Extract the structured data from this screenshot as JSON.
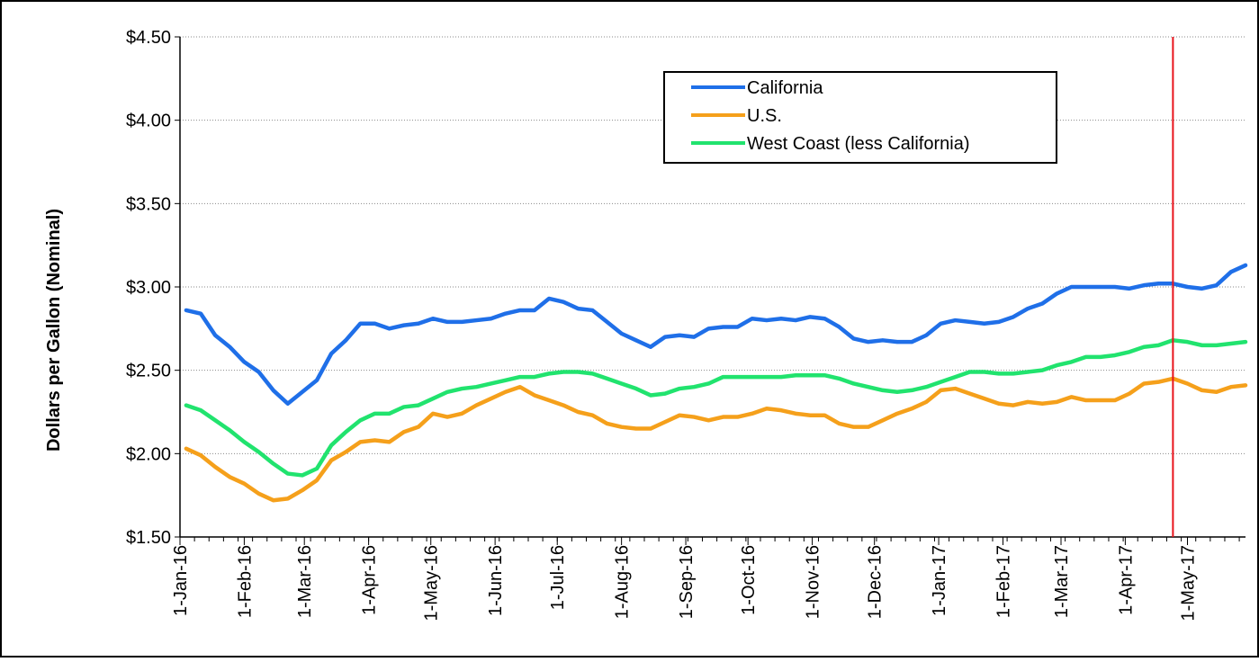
{
  "chart_data": {
    "type": "line",
    "title": "",
    "xlabel": "",
    "ylabel": "Dollars per Gallon (Nominal)",
    "ylim": [
      1.5,
      4.5
    ],
    "y_ticks": [
      "$1.50",
      "$2.00",
      "$2.50",
      "$3.00",
      "$3.50",
      "$4.00",
      "$4.50"
    ],
    "y_tick_values": [
      1.5,
      2.0,
      2.5,
      3.0,
      3.5,
      4.0,
      4.5
    ],
    "xlim": [
      "2016-01-01",
      "2017-05-29"
    ],
    "x_ticks": [
      {
        "date": "2016-01-01",
        "label": "1-Jan-16"
      },
      {
        "date": "2016-02-01",
        "label": "1-Feb-16"
      },
      {
        "date": "2016-03-01",
        "label": "1-Mar-16"
      },
      {
        "date": "2016-04-01",
        "label": "1-Apr-16"
      },
      {
        "date": "2016-05-01",
        "label": "1-May-16"
      },
      {
        "date": "2016-06-01",
        "label": "1-Jun-16"
      },
      {
        "date": "2016-07-01",
        "label": "1-Jul-16"
      },
      {
        "date": "2016-08-01",
        "label": "1-Aug-16"
      },
      {
        "date": "2016-09-01",
        "label": "1-Sep-16"
      },
      {
        "date": "2016-10-01",
        "label": "1-Oct-16"
      },
      {
        "date": "2016-11-01",
        "label": "1-Nov-16"
      },
      {
        "date": "2016-12-01",
        "label": "1-Dec-16"
      },
      {
        "date": "2017-01-01",
        "label": "1-Jan-17"
      },
      {
        "date": "2017-02-01",
        "label": "1-Feb-17"
      },
      {
        "date": "2017-03-01",
        "label": "1-Mar-17"
      },
      {
        "date": "2017-04-01",
        "label": "1-Apr-17"
      },
      {
        "date": "2017-05-01",
        "label": "1-May-17"
      }
    ],
    "grid": "horizontal dotted",
    "legend_position": "top-right",
    "marker_line": {
      "date": "2017-04-24",
      "color": "#e8141c"
    },
    "x": [
      "2016-01-04",
      "2016-01-11",
      "2016-01-18",
      "2016-01-25",
      "2016-02-01",
      "2016-02-08",
      "2016-02-15",
      "2016-02-22",
      "2016-02-29",
      "2016-03-07",
      "2016-03-14",
      "2016-03-21",
      "2016-03-28",
      "2016-04-04",
      "2016-04-11",
      "2016-04-18",
      "2016-04-25",
      "2016-05-02",
      "2016-05-09",
      "2016-05-16",
      "2016-05-23",
      "2016-05-30",
      "2016-06-06",
      "2016-06-13",
      "2016-06-20",
      "2016-06-27",
      "2016-07-04",
      "2016-07-11",
      "2016-07-18",
      "2016-07-25",
      "2016-08-01",
      "2016-08-08",
      "2016-08-15",
      "2016-08-22",
      "2016-08-29",
      "2016-09-05",
      "2016-09-12",
      "2016-09-19",
      "2016-09-26",
      "2016-10-03",
      "2016-10-10",
      "2016-10-17",
      "2016-10-24",
      "2016-10-31",
      "2016-11-07",
      "2016-11-14",
      "2016-11-21",
      "2016-11-28",
      "2016-12-05",
      "2016-12-12",
      "2016-12-19",
      "2016-12-26",
      "2017-01-02",
      "2017-01-09",
      "2017-01-16",
      "2017-01-23",
      "2017-01-30",
      "2017-02-06",
      "2017-02-13",
      "2017-02-20",
      "2017-02-27",
      "2017-03-06",
      "2017-03-13",
      "2017-03-20",
      "2017-03-27",
      "2017-04-03",
      "2017-04-10",
      "2017-04-17",
      "2017-04-24",
      "2017-05-01",
      "2017-05-08",
      "2017-05-15",
      "2017-05-22",
      "2017-05-29"
    ],
    "series": [
      {
        "name": "California",
        "color": "#1f6fe8",
        "values": [
          2.86,
          2.84,
          2.71,
          2.64,
          2.55,
          2.49,
          2.38,
          2.3,
          2.37,
          2.44,
          2.6,
          2.68,
          2.78,
          2.78,
          2.75,
          2.77,
          2.78,
          2.81,
          2.79,
          2.79,
          2.8,
          2.81,
          2.84,
          2.86,
          2.86,
          2.93,
          2.91,
          2.87,
          2.86,
          2.79,
          2.72,
          2.68,
          2.64,
          2.7,
          2.71,
          2.7,
          2.75,
          2.76,
          2.76,
          2.81,
          2.8,
          2.81,
          2.8,
          2.82,
          2.81,
          2.76,
          2.69,
          2.67,
          2.68,
          2.67,
          2.67,
          2.71,
          2.78,
          2.8,
          2.79,
          2.78,
          2.79,
          2.82,
          2.87,
          2.9,
          2.96,
          3.0,
          3.0,
          3.0,
          3.0,
          2.99,
          3.01,
          3.02,
          3.02,
          3.0,
          2.99,
          3.01,
          3.09,
          3.13
        ]
      },
      {
        "name": "U.S.",
        "color": "#f5a01b",
        "values": [
          2.03,
          1.99,
          1.92,
          1.86,
          1.82,
          1.76,
          1.72,
          1.73,
          1.78,
          1.84,
          1.96,
          2.01,
          2.07,
          2.08,
          2.07,
          2.13,
          2.16,
          2.24,
          2.22,
          2.24,
          2.29,
          2.33,
          2.37,
          2.4,
          2.35,
          2.32,
          2.29,
          2.25,
          2.23,
          2.18,
          2.16,
          2.15,
          2.15,
          2.19,
          2.23,
          2.22,
          2.2,
          2.22,
          2.22,
          2.24,
          2.27,
          2.26,
          2.24,
          2.23,
          2.23,
          2.18,
          2.16,
          2.16,
          2.2,
          2.24,
          2.27,
          2.31,
          2.38,
          2.39,
          2.36,
          2.33,
          2.3,
          2.29,
          2.31,
          2.3,
          2.31,
          2.34,
          2.32,
          2.32,
          2.32,
          2.36,
          2.42,
          2.43,
          2.45,
          2.42,
          2.38,
          2.37,
          2.4,
          2.41
        ]
      },
      {
        "name": "West Coast (less California)",
        "color": "#21e36e",
        "values": [
          2.29,
          2.26,
          2.2,
          2.14,
          2.07,
          2.01,
          1.94,
          1.88,
          1.87,
          1.91,
          2.05,
          2.13,
          2.2,
          2.24,
          2.24,
          2.28,
          2.29,
          2.33,
          2.37,
          2.39,
          2.4,
          2.42,
          2.44,
          2.46,
          2.46,
          2.48,
          2.49,
          2.49,
          2.48,
          2.45,
          2.42,
          2.39,
          2.35,
          2.36,
          2.39,
          2.4,
          2.42,
          2.46,
          2.46,
          2.46,
          2.46,
          2.46,
          2.47,
          2.47,
          2.47,
          2.45,
          2.42,
          2.4,
          2.38,
          2.37,
          2.38,
          2.4,
          2.43,
          2.46,
          2.49,
          2.49,
          2.48,
          2.48,
          2.49,
          2.5,
          2.53,
          2.55,
          2.58,
          2.58,
          2.59,
          2.61,
          2.64,
          2.65,
          2.68,
          2.67,
          2.65,
          2.65,
          2.66,
          2.67
        ]
      }
    ]
  }
}
